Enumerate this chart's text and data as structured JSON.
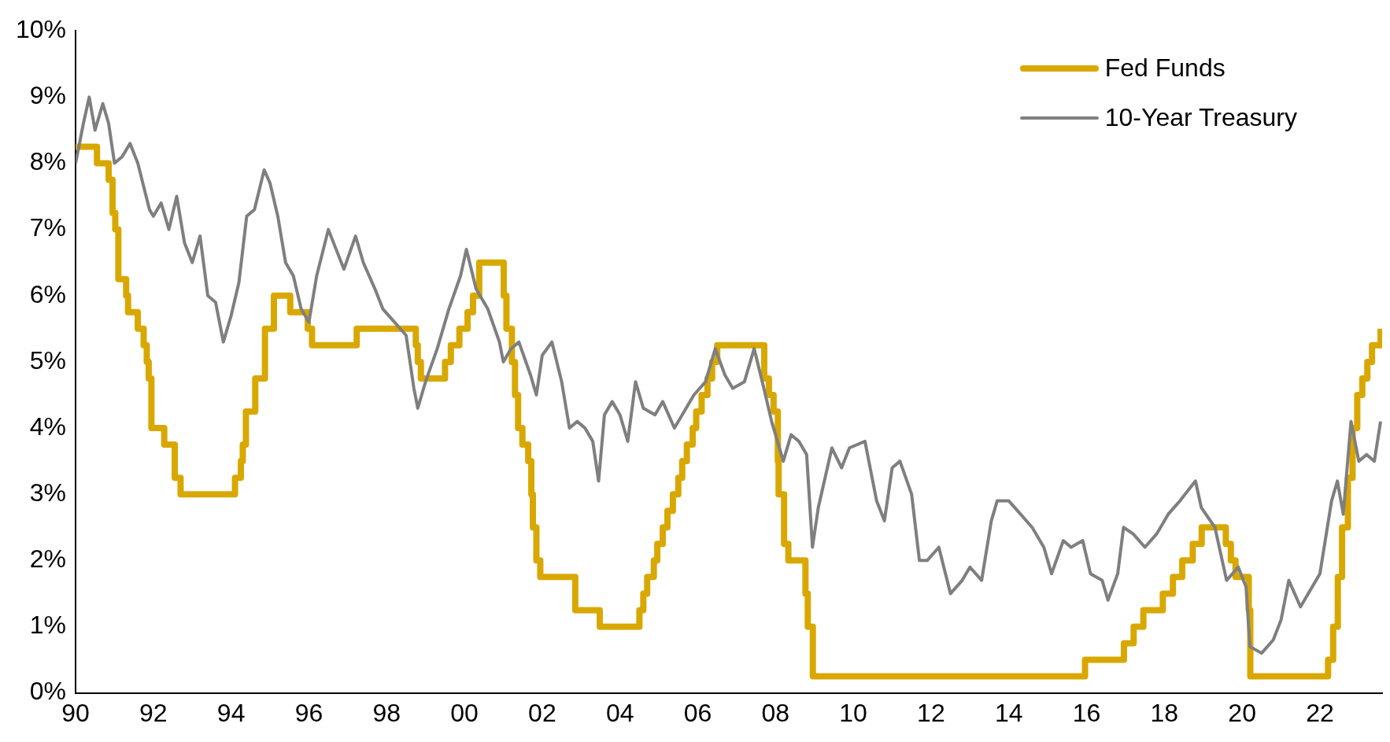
{
  "chart_data": {
    "type": "line",
    "legend": "top right",
    "grid": false,
    "marker": "none",
    "xlim": [
      1990,
      2023.6
    ],
    "xticks": [
      {
        "value": 1990,
        "label": "90"
      },
      {
        "value": 1992,
        "label": "92"
      },
      {
        "value": 1994,
        "label": "94"
      },
      {
        "value": 1996,
        "label": "96"
      },
      {
        "value": 1998,
        "label": "98"
      },
      {
        "value": 2000,
        "label": "00"
      },
      {
        "value": 2002,
        "label": "02"
      },
      {
        "value": 2004,
        "label": "04"
      },
      {
        "value": 2006,
        "label": "06"
      },
      {
        "value": 2008,
        "label": "08"
      },
      {
        "value": 2010,
        "label": "10"
      },
      {
        "value": 2012,
        "label": "12"
      },
      {
        "value": 2014,
        "label": "14"
      },
      {
        "value": 2016,
        "label": "16"
      },
      {
        "value": 2018,
        "label": "18"
      },
      {
        "value": 2020,
        "label": "20"
      },
      {
        "value": 2022,
        "label": "22"
      }
    ],
    "ylim": [
      0,
      10
    ],
    "yticks": [
      {
        "value": 0,
        "label": "0%"
      },
      {
        "value": 1,
        "label": "1%"
      },
      {
        "value": 2,
        "label": "2%"
      },
      {
        "value": 3,
        "label": "3%"
      },
      {
        "value": 4,
        "label": "4%"
      },
      {
        "value": 5,
        "label": "5%"
      },
      {
        "value": 6,
        "label": "6%"
      },
      {
        "value": 7,
        "label": "7%"
      },
      {
        "value": 8,
        "label": "8%"
      },
      {
        "value": 9,
        "label": "9%"
      },
      {
        "value": 10,
        "label": "10%"
      }
    ],
    "series": [
      {
        "name": "Fed Funds",
        "type": "step",
        "color": "#d9a800",
        "x": [
          1990.0,
          1990.55,
          1990.85,
          1990.95,
          1991.02,
          1991.1,
          1991.3,
          1991.35,
          1991.6,
          1991.75,
          1991.83,
          1991.88,
          1991.95,
          1992.28,
          1992.55,
          1992.7,
          1994.1,
          1994.25,
          1994.3,
          1994.38,
          1994.62,
          1994.87,
          1995.1,
          1995.52,
          1995.97,
          1996.08,
          1997.23,
          1998.75,
          1998.8,
          1998.88,
          1999.5,
          1999.65,
          1999.87,
          2000.08,
          2000.22,
          2000.38,
          2001.01,
          2001.08,
          2001.22,
          2001.3,
          2001.38,
          2001.49,
          2001.64,
          2001.72,
          2001.76,
          2001.85,
          2001.95,
          2002.85,
          2003.48,
          2004.5,
          2004.6,
          2004.7,
          2004.87,
          2004.96,
          2005.1,
          2005.22,
          2005.36,
          2005.5,
          2005.6,
          2005.72,
          2005.87,
          2005.96,
          2006.1,
          2006.25,
          2006.37,
          2006.5,
          2007.71,
          2007.83,
          2007.95,
          2008.06,
          2008.08,
          2008.22,
          2008.33,
          2008.77,
          2008.83,
          2008.96,
          2015.96,
          2016.96,
          2017.21,
          2017.46,
          2017.96,
          2018.22,
          2018.46,
          2018.73,
          2018.96,
          2019.58,
          2019.71,
          2019.83,
          2020.17,
          2020.21,
          2022.21,
          2022.34,
          2022.46,
          2022.57,
          2022.72,
          2022.84,
          2022.96,
          2023.09,
          2023.22,
          2023.34,
          2023.56
        ],
        "values": [
          8.25,
          8.0,
          7.75,
          7.25,
          7.0,
          6.25,
          6.0,
          5.75,
          5.5,
          5.25,
          5.0,
          4.75,
          4.0,
          3.75,
          3.25,
          3.0,
          3.25,
          3.5,
          3.75,
          4.25,
          4.75,
          5.5,
          6.0,
          5.75,
          5.5,
          5.25,
          5.5,
          5.25,
          5.0,
          4.75,
          5.0,
          5.25,
          5.5,
          5.75,
          6.0,
          6.5,
          6.0,
          5.5,
          5.0,
          4.5,
          4.0,
          3.75,
          3.5,
          3.0,
          2.5,
          2.0,
          1.75,
          1.25,
          1.0,
          1.25,
          1.5,
          1.75,
          2.0,
          2.25,
          2.5,
          2.75,
          3.0,
          3.25,
          3.5,
          3.75,
          4.0,
          4.25,
          4.5,
          4.75,
          5.0,
          5.25,
          4.75,
          4.5,
          4.25,
          3.5,
          3.0,
          2.25,
          2.0,
          1.5,
          1.0,
          0.25,
          0.5,
          0.75,
          1.0,
          1.25,
          1.5,
          1.75,
          2.0,
          2.25,
          2.5,
          2.25,
          2.0,
          1.75,
          1.25,
          0.25,
          0.5,
          1.0,
          1.75,
          2.5,
          3.25,
          4.0,
          4.5,
          4.75,
          5.0,
          5.25,
          5.5
        ]
      },
      {
        "name": "10-Year Treasury",
        "type": "line",
        "color": "#7f7f7f",
        "x": [
          1990.0,
          1990.2,
          1990.35,
          1990.5,
          1990.7,
          1990.85,
          1991.0,
          1991.2,
          1991.4,
          1991.6,
          1991.9,
          1992.0,
          1992.2,
          1992.4,
          1992.6,
          1992.8,
          1993.0,
          1993.2,
          1993.4,
          1993.6,
          1993.8,
          1994.0,
          1994.2,
          1994.4,
          1994.6,
          1994.85,
          1995.0,
          1995.2,
          1995.4,
          1995.6,
          1995.8,
          1996.0,
          1996.2,
          1996.5,
          1996.7,
          1996.9,
          1997.2,
          1997.4,
          1997.7,
          1997.9,
          1998.2,
          1998.5,
          1998.7,
          1998.8,
          1999.0,
          1999.3,
          1999.6,
          1999.9,
          2000.05,
          2000.3,
          2000.6,
          2000.9,
          2001.0,
          2001.2,
          2001.4,
          2001.7,
          2001.85,
          2002.0,
          2002.25,
          2002.5,
          2002.7,
          2002.9,
          2003.1,
          2003.3,
          2003.45,
          2003.6,
          2003.8,
          2004.0,
          2004.2,
          2004.4,
          2004.6,
          2004.9,
          2005.1,
          2005.4,
          2005.6,
          2005.9,
          2006.2,
          2006.45,
          2006.7,
          2006.9,
          2007.2,
          2007.45,
          2007.7,
          2007.9,
          2008.2,
          2008.4,
          2008.6,
          2008.8,
          2008.95,
          2009.1,
          2009.45,
          2009.7,
          2009.9,
          2010.3,
          2010.6,
          2010.8,
          2011.0,
          2011.2,
          2011.5,
          2011.7,
          2011.9,
          2012.2,
          2012.5,
          2012.8,
          2013.0,
          2013.3,
          2013.55,
          2013.7,
          2014.0,
          2014.3,
          2014.6,
          2014.9,
          2015.1,
          2015.4,
          2015.6,
          2015.9,
          2016.1,
          2016.4,
          2016.55,
          2016.8,
          2016.95,
          2017.2,
          2017.5,
          2017.8,
          2018.1,
          2018.4,
          2018.8,
          2018.95,
          2019.3,
          2019.6,
          2019.9,
          2020.1,
          2020.2,
          2020.5,
          2020.8,
          2021.0,
          2021.2,
          2021.5,
          2021.8,
          2022.0,
          2022.3,
          2022.45,
          2022.6,
          2022.8,
          2023.0,
          2023.2,
          2023.4,
          2023.56
        ],
        "values": [
          8.0,
          8.6,
          9.0,
          8.5,
          8.9,
          8.6,
          8.0,
          8.1,
          8.3,
          8.0,
          7.3,
          7.2,
          7.4,
          7.0,
          7.5,
          6.8,
          6.5,
          6.9,
          6.0,
          5.9,
          5.3,
          5.7,
          6.2,
          7.2,
          7.3,
          7.9,
          7.7,
          7.2,
          6.5,
          6.3,
          5.8,
          5.6,
          6.3,
          7.0,
          6.7,
          6.4,
          6.9,
          6.5,
          6.1,
          5.8,
          5.6,
          5.4,
          4.6,
          4.3,
          4.7,
          5.2,
          5.8,
          6.3,
          6.7,
          6.1,
          5.8,
          5.3,
          5.0,
          5.2,
          5.3,
          4.8,
          4.5,
          5.1,
          5.3,
          4.7,
          4.0,
          4.1,
          4.0,
          3.8,
          3.2,
          4.2,
          4.4,
          4.2,
          3.8,
          4.7,
          4.3,
          4.2,
          4.4,
          4.0,
          4.2,
          4.5,
          4.7,
          5.2,
          4.8,
          4.6,
          4.7,
          5.2,
          4.6,
          4.1,
          3.5,
          3.9,
          3.8,
          3.6,
          2.2,
          2.8,
          3.7,
          3.4,
          3.7,
          3.8,
          2.9,
          2.6,
          3.4,
          3.5,
          3.0,
          2.0,
          2.0,
          2.2,
          1.5,
          1.7,
          1.9,
          1.7,
          2.6,
          2.9,
          2.9,
          2.7,
          2.5,
          2.2,
          1.8,
          2.3,
          2.2,
          2.3,
          1.8,
          1.7,
          1.4,
          1.8,
          2.5,
          2.4,
          2.2,
          2.4,
          2.7,
          2.9,
          3.2,
          2.8,
          2.5,
          1.7,
          1.9,
          1.6,
          0.7,
          0.6,
          0.8,
          1.1,
          1.7,
          1.3,
          1.6,
          1.8,
          2.9,
          3.2,
          2.7,
          4.1,
          3.5,
          3.6,
          3.5,
          4.1
        ]
      }
    ]
  }
}
